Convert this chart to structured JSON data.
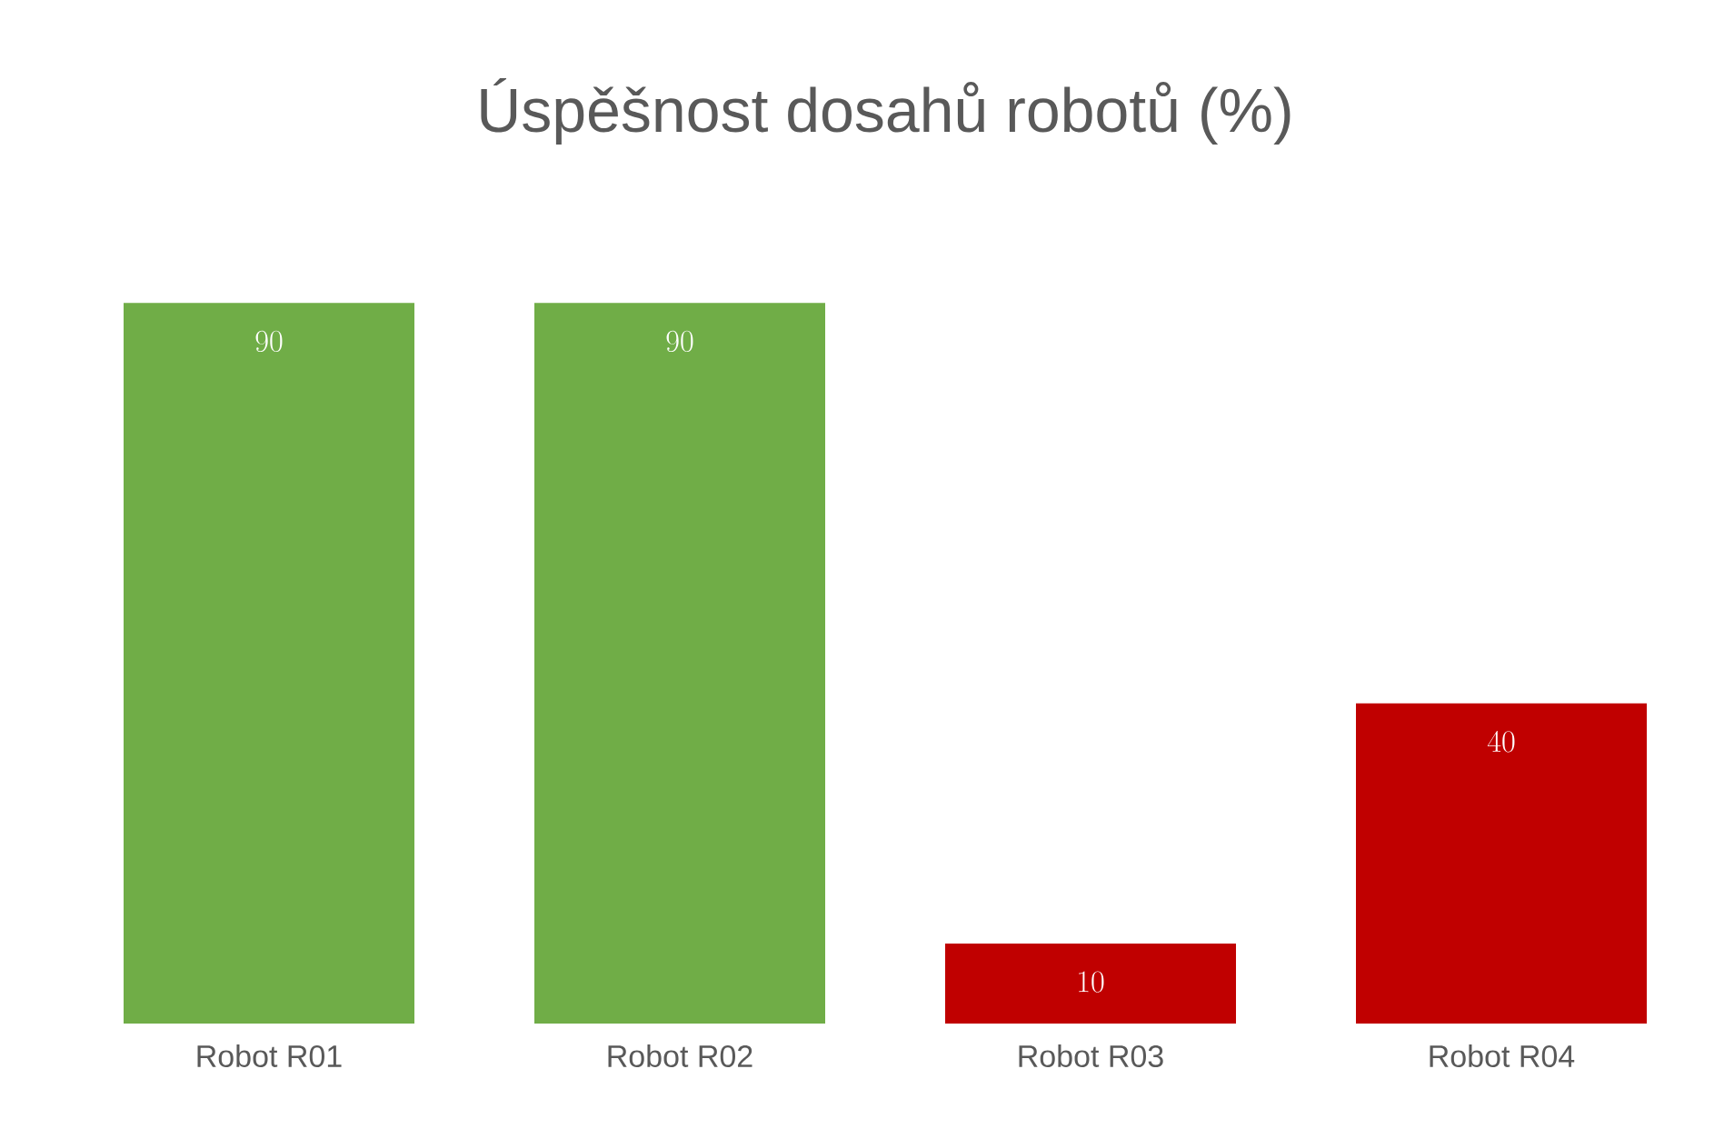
{
  "chart_data": {
    "type": "bar",
    "title": "Úspěšnost dosahů robotů (%)",
    "categories": [
      "Robot R01",
      "Robot R02",
      "Robot R03",
      "Robot R04"
    ],
    "values": [
      90,
      90,
      10,
      40
    ],
    "colors": [
      "#70ad47",
      "#70ad47",
      "#c00000",
      "#c00000"
    ],
    "data_labels": true
  }
}
